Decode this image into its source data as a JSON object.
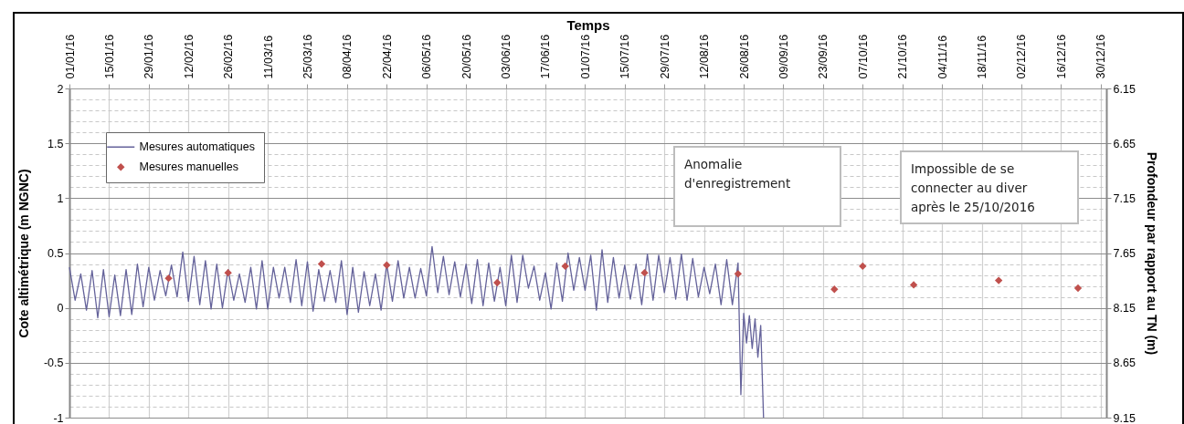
{
  "chart_data": {
    "type": "line",
    "title": "Temps",
    "ylabel": "Cote altimétrique (m NGNC)",
    "y2label": "Profondeur par rapport au TN (m)",
    "xlim": [
      "2016-01-01",
      "2017-01-01"
    ],
    "xticks": [
      {
        "value": "2016-01-01",
        "label": "01/01/16"
      },
      {
        "value": "2016-01-15",
        "label": "15/01/16"
      },
      {
        "value": "2016-01-29",
        "label": "29/01/16"
      },
      {
        "value": "2016-02-12",
        "label": "12/02/16"
      },
      {
        "value": "2016-02-26",
        "label": "26/02/16"
      },
      {
        "value": "2016-03-11",
        "label": "11/03/16"
      },
      {
        "value": "2016-03-25",
        "label": "25/03/16"
      },
      {
        "value": "2016-04-08",
        "label": "08/04/16"
      },
      {
        "value": "2016-04-22",
        "label": "22/04/16"
      },
      {
        "value": "2016-05-06",
        "label": "06/05/16"
      },
      {
        "value": "2016-05-20",
        "label": "20/05/16"
      },
      {
        "value": "2016-06-03",
        "label": "03/06/16"
      },
      {
        "value": "2016-06-17",
        "label": "17/06/16"
      },
      {
        "value": "2016-07-01",
        "label": "01/07/16"
      },
      {
        "value": "2016-07-15",
        "label": "15/07/16"
      },
      {
        "value": "2016-07-29",
        "label": "29/07/16"
      },
      {
        "value": "2016-08-12",
        "label": "12/08/16"
      },
      {
        "value": "2016-08-26",
        "label": "26/08/16"
      },
      {
        "value": "2016-09-09",
        "label": "09/09/16"
      },
      {
        "value": "2016-09-23",
        "label": "23/09/16"
      },
      {
        "value": "2016-10-07",
        "label": "07/10/16"
      },
      {
        "value": "2016-10-21",
        "label": "21/10/16"
      },
      {
        "value": "2016-11-04",
        "label": "04/11/16"
      },
      {
        "value": "2016-11-18",
        "label": "18/11/16"
      },
      {
        "value": "2016-12-02",
        "label": "02/12/16"
      },
      {
        "value": "2016-12-16",
        "label": "16/12/16"
      },
      {
        "value": "2016-12-30",
        "label": "30/12/16"
      }
    ],
    "ylim": [
      -1,
      2
    ],
    "yticks": [
      -1,
      {
        "value": -0.9,
        "label": null
      },
      {
        "value": -0.8,
        "label": null
      },
      {
        "value": -0.7,
        "label": null
      },
      {
        "value": -0.6,
        "label": null
      },
      -0.5,
      {
        "value": -0.4,
        "label": null
      },
      {
        "value": -0.3,
        "label": null
      },
      {
        "value": -0.2,
        "label": null
      },
      {
        "value": -0.1,
        "label": null
      },
      0,
      {
        "value": 0.1,
        "label": null
      },
      {
        "value": 0.2,
        "label": null
      },
      {
        "value": 0.3,
        "label": null
      },
      {
        "value": 0.4,
        "label": null
      },
      0.5,
      {
        "value": 0.6,
        "label": null
      },
      {
        "value": 0.7,
        "label": null
      },
      {
        "value": 0.8,
        "label": null
      },
      {
        "value": 0.9,
        "label": null
      },
      1,
      {
        "value": 1.1,
        "label": null
      },
      {
        "value": 1.2,
        "label": null
      },
      {
        "value": 1.3,
        "label": null
      },
      {
        "value": 1.4,
        "label": null
      },
      1.5,
      {
        "value": 1.6,
        "label": null
      },
      {
        "value": 1.7,
        "label": null
      },
      {
        "value": 1.8,
        "label": null
      },
      {
        "value": 1.9,
        "label": null
      },
      2
    ],
    "y2lim": [
      9.15,
      6.15
    ],
    "y2ticks": [
      6.15,
      6.65,
      7.15,
      7.65,
      8.15,
      8.65,
      9.15
    ],
    "grid": true,
    "legend": "top left",
    "annotations": [
      "Anomalie\nd'enregistrement",
      "Impossible de se\nconnecter au diver\naprès le 25/10/2016"
    ],
    "series": [
      {
        "name": "Mesures automatiques",
        "color": "#64629a",
        "line_style": "solid",
        "marker": "none",
        "x": [
          "2016-01-01",
          "2016-01-03",
          "2016-01-05",
          "2016-01-07",
          "2016-01-09",
          "2016-01-11",
          "2016-01-13",
          "2016-01-15",
          "2016-01-17",
          "2016-01-19",
          "2016-01-21",
          "2016-01-23",
          "2016-01-25",
          "2016-01-27",
          "2016-01-29",
          "2016-01-31",
          "2016-02-02",
          "2016-02-04",
          "2016-02-06",
          "2016-02-08",
          "2016-02-10",
          "2016-02-12",
          "2016-02-14",
          "2016-02-16",
          "2016-02-18",
          "2016-02-20",
          "2016-02-22",
          "2016-02-24",
          "2016-02-26",
          "2016-02-28",
          "2016-03-01",
          "2016-03-03",
          "2016-03-05",
          "2016-03-07",
          "2016-03-09",
          "2016-03-11",
          "2016-03-13",
          "2016-03-15",
          "2016-03-17",
          "2016-03-19",
          "2016-03-21",
          "2016-03-23",
          "2016-03-25",
          "2016-03-27",
          "2016-03-29",
          "2016-03-31",
          "2016-04-02",
          "2016-04-04",
          "2016-04-06",
          "2016-04-08",
          "2016-04-10",
          "2016-04-12",
          "2016-04-14",
          "2016-04-16",
          "2016-04-18",
          "2016-04-20",
          "2016-04-22",
          "2016-04-24",
          "2016-04-26",
          "2016-04-28",
          "2016-04-30",
          "2016-05-02",
          "2016-05-04",
          "2016-05-06",
          "2016-05-08",
          "2016-05-10",
          "2016-05-12",
          "2016-05-14",
          "2016-05-16",
          "2016-05-18",
          "2016-05-20",
          "2016-05-22",
          "2016-05-24",
          "2016-05-26",
          "2016-05-28",
          "2016-05-30",
          "2016-06-01",
          "2016-06-03",
          "2016-06-05",
          "2016-06-07",
          "2016-06-09",
          "2016-06-11",
          "2016-06-13",
          "2016-06-15",
          "2016-06-17",
          "2016-06-19",
          "2016-06-21",
          "2016-06-23",
          "2016-06-25",
          "2016-06-27",
          "2016-06-29",
          "2016-07-01",
          "2016-07-03",
          "2016-07-05",
          "2016-07-07",
          "2016-07-09",
          "2016-07-11",
          "2016-07-13",
          "2016-07-15",
          "2016-07-17",
          "2016-07-19",
          "2016-07-21",
          "2016-07-23",
          "2016-07-25",
          "2016-07-27",
          "2016-07-29",
          "2016-07-31",
          "2016-08-02",
          "2016-08-04",
          "2016-08-06",
          "2016-08-08",
          "2016-08-10",
          "2016-08-12",
          "2016-08-14",
          "2016-08-16",
          "2016-08-18",
          "2016-08-20",
          "2016-08-22",
          "2016-08-24",
          "2016-08-25",
          "2016-08-26",
          "2016-08-27",
          "2016-08-28",
          "2016-08-29",
          "2016-08-30",
          "2016-08-31",
          "2016-09-01",
          "2016-09-02"
        ],
        "values": [
          0.37,
          0.07,
          0.31,
          -0.02,
          0.34,
          -0.09,
          0.35,
          -0.08,
          0.3,
          -0.07,
          0.35,
          -0.06,
          0.4,
          0.01,
          0.37,
          0.07,
          0.34,
          0.11,
          0.39,
          0.1,
          0.51,
          0.06,
          0.47,
          0.03,
          0.43,
          -0.01,
          0.4,
          0.0,
          0.35,
          0.07,
          0.31,
          0.05,
          0.37,
          -0.01,
          0.43,
          -0.01,
          0.37,
          0.09,
          0.37,
          0.05,
          0.44,
          0.02,
          0.42,
          -0.03,
          0.35,
          0.06,
          0.34,
          0.05,
          0.43,
          -0.06,
          0.37,
          -0.04,
          0.33,
          0.02,
          0.31,
          -0.02,
          0.4,
          0.06,
          0.43,
          0.09,
          0.37,
          0.09,
          0.36,
          0.11,
          0.56,
          0.14,
          0.47,
          0.12,
          0.42,
          0.1,
          0.4,
          0.04,
          0.44,
          0.02,
          0.41,
          0.06,
          0.37,
          0.02,
          0.48,
          0.05,
          0.48,
          0.18,
          0.38,
          0.07,
          0.32,
          -0.01,
          0.41,
          0.06,
          0.5,
          0.16,
          0.46,
          0.16,
          0.48,
          -0.02,
          0.53,
          0.05,
          0.46,
          0.09,
          0.39,
          0.08,
          0.4,
          0.03,
          0.49,
          0.07,
          0.48,
          0.14,
          0.46,
          0.08,
          0.49,
          0.07,
          0.45,
          0.1,
          0.37,
          0.13,
          0.4,
          0.03,
          0.44,
          0.03,
          0.41,
          -0.79,
          -0.05,
          -0.32,
          -0.07,
          -0.37,
          -0.1,
          -0.45,
          -0.16,
          -1.0
        ]
      },
      {
        "name": "Mesures manuelles",
        "type": "scatter",
        "color": "#c0504d",
        "marker": "diamond",
        "x": [
          "2016-02-05",
          "2016-02-26",
          "2016-03-30",
          "2016-04-22",
          "2016-05-31",
          "2016-06-24",
          "2016-07-22",
          "2016-08-24",
          "2016-09-27",
          "2016-10-07",
          "2016-10-25",
          "2016-11-24",
          "2016-12-22"
        ],
        "values": [
          0.27,
          0.32,
          0.4,
          0.39,
          0.23,
          0.38,
          0.32,
          0.31,
          0.17,
          0.38,
          0.21,
          0.25,
          0.18
        ]
      }
    ]
  }
}
